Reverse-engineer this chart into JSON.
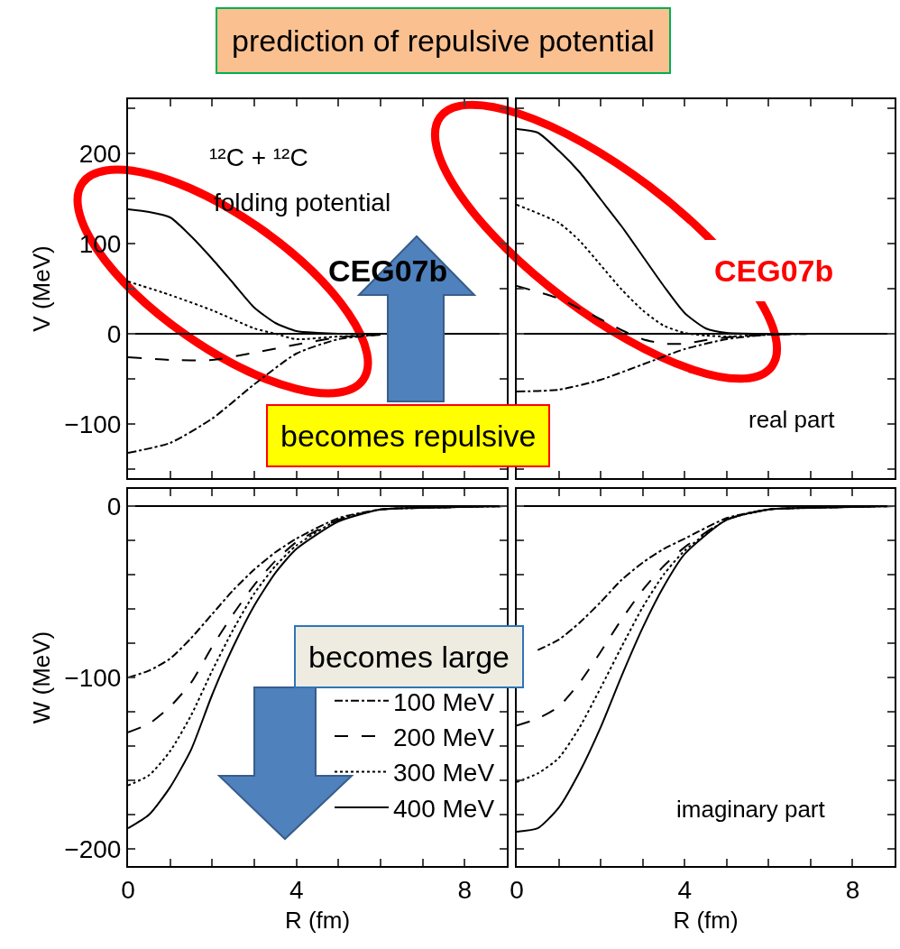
{
  "chart_data": [
    {
      "type": "line",
      "title": "prediction of repulsive potential",
      "ylabel": "V (MeV)",
      "xlim": [
        0,
        9
      ],
      "ylim": [
        -160,
        260
      ],
      "tick_labels": "y",
      "xticks": [
        {
          "value": 0,
          "label": null
        },
        {
          "value": 1,
          "label": null
        },
        {
          "value": 2,
          "label": null
        },
        {
          "value": 3,
          "label": null
        },
        {
          "value": 4,
          "label": null
        },
        {
          "value": 5,
          "label": null
        },
        {
          "value": 6,
          "label": null
        },
        {
          "value": 7,
          "label": null
        },
        {
          "value": 8,
          "label": null
        },
        {
          "value": 9,
          "label": null
        }
      ],
      "yticks": [
        {
          "value": -150,
          "label": null
        },
        {
          "value": -100,
          "label": "−100"
        },
        {
          "value": -50,
          "label": null
        },
        0,
        {
          "value": 50,
          "label": null
        },
        100,
        {
          "value": 150,
          "label": null
        },
        200,
        {
          "value": 250,
          "label": null
        }
      ],
      "series": [
        {
          "color": "#000000",
          "line_style": "dashdot",
          "x": [
            0,
            1,
            2,
            3,
            4,
            5,
            6
          ],
          "values": [
            -132,
            -121,
            -94,
            -56,
            -22,
            -6,
            -1
          ]
        },
        {
          "color": "#000000",
          "line_style": "dashed",
          "x": [
            0,
            1,
            2,
            3,
            4,
            5,
            6
          ],
          "values": [
            -26,
            -29,
            -29,
            -21,
            -12,
            -4,
            -1
          ]
        },
        {
          "color": "#000000",
          "line_style": "dotted",
          "x": [
            0,
            1,
            2,
            3,
            3.5,
            4,
            5,
            6
          ],
          "values": [
            58,
            43,
            26,
            6,
            0,
            -6,
            -3,
            -1
          ]
        },
        {
          "color": "#000000",
          "line_style": "solid",
          "x": [
            0,
            0.5,
            1,
            1.5,
            2,
            2.5,
            3,
            3.5,
            4,
            4.5,
            5,
            6
          ],
          "values": [
            138,
            135,
            129,
            108,
            83,
            56,
            29,
            12,
            3,
            1,
            0,
            0
          ]
        }
      ],
      "ref_lines": [
        {
          "axis": "y",
          "value": 0,
          "color": "#000000"
        }
      ],
      "annotations": [
        "¹²C + ¹²C",
        "folding potential",
        "CEG07b",
        "becomes repulsive"
      ]
    },
    {
      "type": "line",
      "xlim": [
        0,
        9
      ],
      "ylim": [
        -160,
        260
      ],
      "tick_labels": false,
      "xticks": [
        {
          "value": 0,
          "label": null
        },
        {
          "value": 1,
          "label": null
        },
        {
          "value": 2,
          "label": null
        },
        {
          "value": 3,
          "label": null
        },
        {
          "value": 4,
          "label": null
        },
        {
          "value": 5,
          "label": null
        },
        {
          "value": 6,
          "label": null
        },
        {
          "value": 7,
          "label": null
        },
        {
          "value": 8,
          "label": null
        },
        {
          "value": 9,
          "label": null
        }
      ],
      "yticks": [
        {
          "value": -150,
          "label": null
        },
        {
          "value": -100,
          "label": null
        },
        {
          "value": -50,
          "label": null
        },
        {
          "value": 0,
          "label": null
        },
        {
          "value": 50,
          "label": null
        },
        {
          "value": 100,
          "label": null
        },
        {
          "value": 150,
          "label": null
        },
        {
          "value": 200,
          "label": null
        },
        {
          "value": 250,
          "label": null
        }
      ],
      "series": [
        {
          "color": "#000000",
          "line_style": "dashdot",
          "x": [
            0,
            1,
            2,
            3,
            4,
            5,
            6,
            7
          ],
          "values": [
            -64,
            -62,
            -51,
            -34,
            -17,
            -6,
            -1,
            0
          ]
        },
        {
          "color": "#000000",
          "line_style": "dashed",
          "x": [
            0,
            1,
            2,
            2.5,
            3,
            3.5,
            4,
            4.5,
            5,
            6,
            7
          ],
          "values": [
            53,
            39,
            16,
            4,
            -6,
            -11,
            -11,
            -7,
            -4,
            -1,
            0
          ]
        },
        {
          "color": "#000000",
          "line_style": "dotted",
          "x": [
            0,
            1,
            1.5,
            2,
            2.5,
            3,
            3.5,
            4,
            4.5,
            5,
            6,
            7
          ],
          "values": [
            143,
            123,
            103,
            76,
            49,
            26,
            9,
            1,
            -2,
            -3,
            -1,
            0
          ]
        },
        {
          "color": "#000000",
          "line_style": "solid",
          "x": [
            0,
            0.5,
            1,
            1.5,
            2,
            2.5,
            3,
            3.5,
            4,
            4.5,
            5,
            6,
            7
          ],
          "values": [
            227,
            223,
            203,
            179,
            149,
            119,
            86,
            53,
            23,
            6,
            1,
            0,
            0
          ]
        }
      ],
      "ref_lines": [
        {
          "axis": "y",
          "value": 0,
          "color": "#000000"
        }
      ],
      "annotations": [
        "CEG07b",
        "real part"
      ]
    },
    {
      "type": "line",
      "xlabel": "R (fm)",
      "ylabel": "W (MeV)",
      "xlim": [
        0,
        9
      ],
      "ylim": [
        -210,
        10
      ],
      "legend": "bottom right",
      "xticks": [
        0,
        {
          "value": 1,
          "label": null
        },
        {
          "value": 2,
          "label": null
        },
        {
          "value": 3,
          "label": null
        },
        4,
        {
          "value": 5,
          "label": null
        },
        {
          "value": 6,
          "label": null
        },
        {
          "value": 7,
          "label": null
        },
        8,
        {
          "value": 9,
          "label": null
        }
      ],
      "yticks": [
        {
          "value": -200,
          "label": "−200"
        },
        {
          "value": -180,
          "label": null
        },
        {
          "value": -160,
          "label": null
        },
        {
          "value": -140,
          "label": null
        },
        {
          "value": -120,
          "label": null
        },
        {
          "value": -100,
          "label": "−100"
        },
        {
          "value": -80,
          "label": null
        },
        {
          "value": -60,
          "label": null
        },
        {
          "value": -40,
          "label": null
        },
        {
          "value": -20,
          "label": null
        },
        0
      ],
      "series": [
        {
          "name": "100 MeV",
          "color": "#000000",
          "line_style": "dashdot",
          "x": [
            0,
            0.5,
            1,
            1.5,
            2,
            2.5,
            3,
            3.5,
            4,
            5,
            6,
            7,
            9
          ],
          "values": [
            -100,
            -96,
            -89,
            -77,
            -63,
            -49,
            -37,
            -27,
            -19,
            -7,
            -2,
            -1,
            0
          ]
        },
        {
          "name": "200 MeV",
          "color": "#000000",
          "line_style": "dashed",
          "x": [
            0,
            0.5,
            1,
            1.5,
            2,
            2.5,
            3,
            3.5,
            4,
            5,
            6,
            7,
            9
          ],
          "values": [
            -132,
            -127,
            -117,
            -103,
            -82,
            -63,
            -46,
            -32,
            -21,
            -8,
            -2,
            -1,
            0
          ]
        },
        {
          "name": "300 MeV",
          "color": "#000000",
          "line_style": "dotted",
          "x": [
            0,
            0.5,
            1,
            1.5,
            2,
            2.5,
            3,
            3.5,
            4,
            5,
            6,
            7,
            9
          ],
          "values": [
            -163,
            -157,
            -143,
            -122,
            -96,
            -72,
            -51,
            -35,
            -23,
            -8,
            -2,
            -1,
            0
          ]
        },
        {
          "name": "400 MeV",
          "color": "#000000",
          "line_style": "solid",
          "x": [
            0,
            0.5,
            1,
            1.5,
            2,
            2.5,
            3,
            3.5,
            4,
            5,
            6,
            7,
            9
          ],
          "values": [
            -188,
            -180,
            -164,
            -142,
            -110,
            -82,
            -58,
            -39,
            -25,
            -9,
            -2,
            -1,
            0
          ]
        }
      ],
      "ref_lines": [
        {
          "axis": "y",
          "value": 0,
          "color": "#000000"
        }
      ],
      "annotations": [
        "becomes large"
      ]
    },
    {
      "type": "line",
      "xlabel": "R (fm)",
      "xlim": [
        0,
        9
      ],
      "ylim": [
        -210,
        10
      ],
      "tick_labels": "x",
      "xticks": [
        0,
        {
          "value": 1,
          "label": null
        },
        {
          "value": 2,
          "label": null
        },
        {
          "value": 3,
          "label": null
        },
        4,
        {
          "value": 5,
          "label": null
        },
        {
          "value": 6,
          "label": null
        },
        {
          "value": 7,
          "label": null
        },
        8,
        {
          "value": 9,
          "label": null
        }
      ],
      "yticks": [
        {
          "value": -200,
          "label": null
        },
        {
          "value": -180,
          "label": null
        },
        {
          "value": -160,
          "label": null
        },
        {
          "value": -140,
          "label": null
        },
        {
          "value": -120,
          "label": null
        },
        {
          "value": -100,
          "label": null
        },
        {
          "value": -80,
          "label": null
        },
        {
          "value": -60,
          "label": null
        },
        {
          "value": -40,
          "label": null
        },
        {
          "value": -20,
          "label": null
        },
        {
          "value": 0,
          "label": null
        }
      ],
      "series": [
        {
          "color": "#000000",
          "line_style": "dashdot",
          "x": [
            0.5,
            1,
            1.5,
            2,
            2.5,
            3,
            3.5,
            4,
            5,
            6,
            7,
            9
          ],
          "values": [
            -84,
            -78,
            -68,
            -56,
            -43,
            -33,
            -25,
            -19,
            -7,
            -2,
            -1,
            0
          ]
        },
        {
          "color": "#000000",
          "line_style": "dashed",
          "x": [
            0,
            0.5,
            1,
            1.5,
            2,
            2.5,
            3,
            3.5,
            4,
            5,
            6,
            7,
            9
          ],
          "values": [
            -128,
            -124,
            -117,
            -103,
            -85,
            -66,
            -49,
            -35,
            -24,
            -8,
            -2,
            -1,
            0
          ]
        },
        {
          "color": "#000000",
          "line_style": "dotted",
          "x": [
            0,
            0.5,
            1,
            1.5,
            2,
            2.5,
            3,
            3.5,
            4,
            5,
            6,
            7,
            9
          ],
          "values": [
            -161,
            -156,
            -147,
            -129,
            -106,
            -82,
            -59,
            -40,
            -26,
            -8,
            -2,
            -1,
            0
          ]
        },
        {
          "color": "#000000",
          "line_style": "solid",
          "x": [
            0,
            0.5,
            1,
            1.5,
            2,
            2.5,
            3,
            3.5,
            4,
            5,
            6,
            7,
            9
          ],
          "values": [
            -190,
            -188,
            -176,
            -155,
            -129,
            -99,
            -71,
            -47,
            -28,
            -8,
            -2,
            -1,
            0
          ]
        }
      ],
      "ref_lines": [
        {
          "axis": "y",
          "value": 0,
          "color": "#000000"
        }
      ],
      "annotations": [
        "imaginary part"
      ]
    }
  ]
}
